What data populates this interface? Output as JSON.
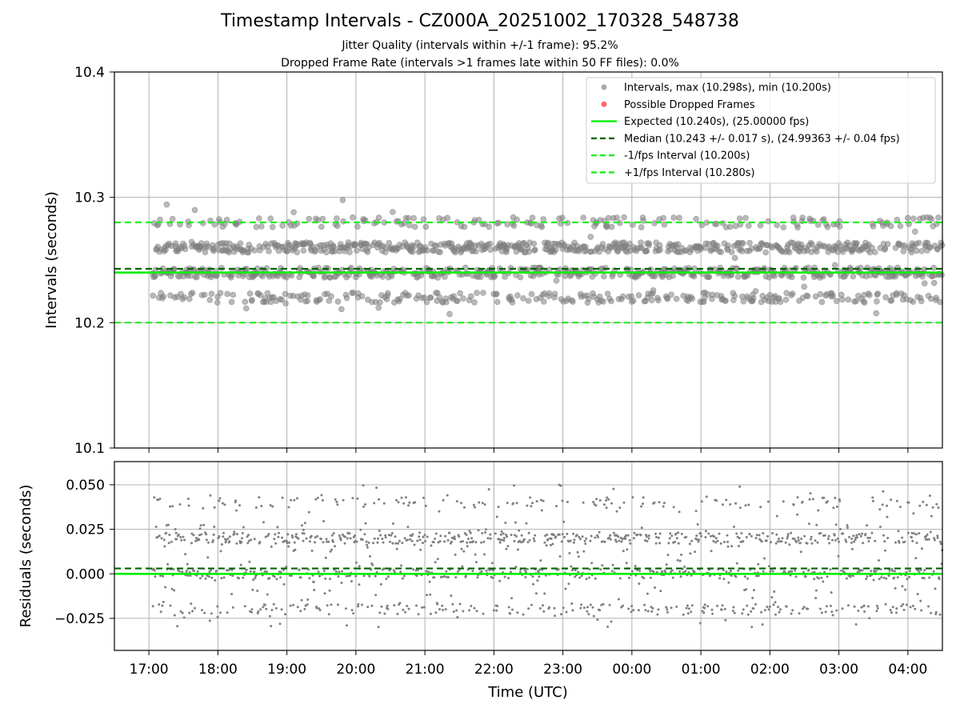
{
  "figure": {
    "title": "Timestamp Intervals - CZ000A_20251002_170328_548738",
    "subtitle_jitter": "Jitter Quality (intervals within +/-1 frame): 95.2%",
    "subtitle_dropped": "Dropped Frame Rate (intervals >1 frames late within 50 FF files): 0.0%"
  },
  "colors": {
    "points": "#808080",
    "dropped": "#ff4c4c",
    "expected": "#00ee00",
    "median": "#006400",
    "fps_band": "#22ee22",
    "grid": "#b0b0b0"
  },
  "chart_data": [
    {
      "type": "scatter",
      "panel": "intervals",
      "ylabel": "Intervals (seconds)",
      "ylim": [
        10.1,
        10.4
      ],
      "yticks": [
        10.1,
        10.2,
        10.3,
        10.4
      ],
      "ytick_labels": [
        "10.1",
        "10.2",
        "10.3",
        "10.4"
      ],
      "xlim": [
        "16:30",
        "04:30"
      ],
      "grid": true,
      "legend_placement": "upper right",
      "legend": [
        {
          "label": "Intervals, max (10.298s), min (10.200s)",
          "kind": "marker",
          "color": "#a9a9a9"
        },
        {
          "label": "Possible Dropped Frames",
          "kind": "marker",
          "color": "#ff6666"
        },
        {
          "label": "Expected (10.240s), (25.00000 fps)",
          "kind": "solid",
          "color": "#00ee00"
        },
        {
          "label": "Median (10.243 +/- 0.017 s), (24.99363 +/- 0.04 fps)",
          "kind": "dashed",
          "color": "#006400"
        },
        {
          "label": "-1/fps Interval (10.200s)",
          "kind": "dashed",
          "color": "#22ee22"
        },
        {
          "label": "+1/fps Interval (10.280s)",
          "kind": "dashed",
          "color": "#22ee22"
        }
      ],
      "lines": {
        "expected": 10.24,
        "median": 10.243,
        "minus_fps": 10.2,
        "plus_fps": 10.28
      },
      "point_levels": [
        10.22,
        10.24,
        10.26,
        10.28
      ],
      "point_spread": 0.004,
      "max": 10.298,
      "min": 10.2,
      "x_start": "17:03",
      "x_end": "04:30",
      "dropped_frames": []
    },
    {
      "type": "scatter",
      "panel": "residuals",
      "ylabel": "Residuals (seconds)",
      "xlabel": "Time (UTC)",
      "ylim": [
        -0.043,
        0.063
      ],
      "yticks": [
        -0.025,
        0.0,
        0.025,
        0.05
      ],
      "ytick_labels": [
        "−0.025",
        "0.000",
        "0.025",
        "0.050"
      ],
      "xticks": [
        "17:00",
        "18:00",
        "19:00",
        "20:00",
        "21:00",
        "22:00",
        "23:00",
        "00:00",
        "01:00",
        "02:00",
        "03:00",
        "04:00"
      ],
      "grid": true,
      "lines": {
        "zero": 0.0,
        "median_offset": 0.003
      },
      "point_levels": [
        -0.02,
        0.0,
        0.02,
        0.04
      ],
      "point_spread": 0.003
    }
  ]
}
